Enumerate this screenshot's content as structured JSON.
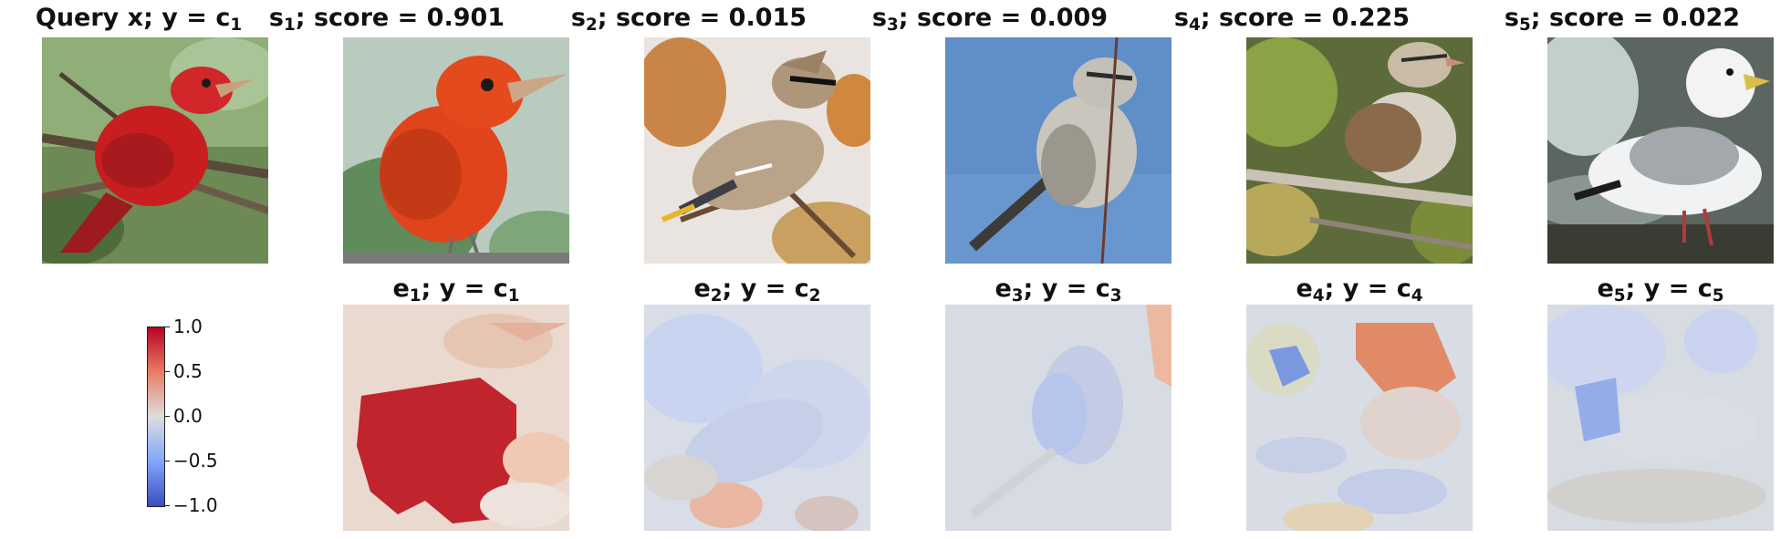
{
  "query": {
    "title_main": "Query x; y = c",
    "title_sub": "1"
  },
  "samples": [
    {
      "title_main": "s",
      "title_sub": "1",
      "title_rest": "; score = 0.901",
      "bird": "red-bird"
    },
    {
      "title_main": "s",
      "title_sub": "2",
      "title_rest": "; score = 0.015",
      "bird": "waxwing"
    },
    {
      "title_main": "s",
      "title_sub": "3",
      "title_rest": "; score = 0.009",
      "bird": "grey-bird"
    },
    {
      "title_main": "s",
      "title_sub": "4",
      "title_rest": "; score = 0.225",
      "bird": "sparrow"
    },
    {
      "title_main": "s",
      "title_sub": "5",
      "title_rest": "; score = 0.022",
      "bird": "gull"
    }
  ],
  "explanations": [
    {
      "title_main": "e",
      "title_sub": "1",
      "title_mid": "; y = c",
      "title_sub2": "1"
    },
    {
      "title_main": "e",
      "title_sub": "2",
      "title_mid": "; y = c",
      "title_sub2": "2"
    },
    {
      "title_main": "e",
      "title_sub": "3",
      "title_mid": "; y = c",
      "title_sub2": "3"
    },
    {
      "title_main": "e",
      "title_sub": "4",
      "title_mid": "; y = c",
      "title_sub2": "4"
    },
    {
      "title_main": "e",
      "title_sub": "5",
      "title_mid": "; y = c",
      "title_sub2": "5"
    }
  ],
  "colorbar": {
    "ticks": [
      "1.0",
      "0.5",
      "0.0",
      "−0.5",
      "−1.0"
    ],
    "colors": {
      "high": "#b40426",
      "mid": "#dddddd",
      "low": "#3b4cc0"
    }
  }
}
